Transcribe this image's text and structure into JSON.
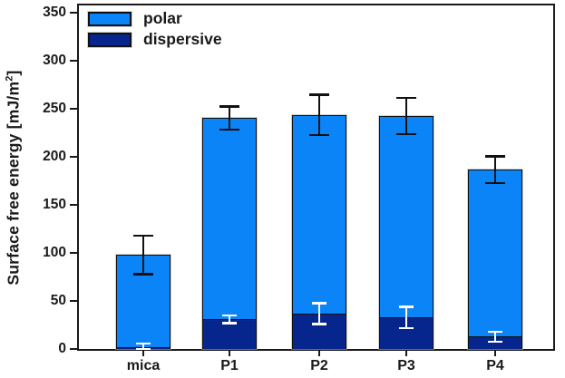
{
  "figure": {
    "background": "#ffffff",
    "axis_color": "#1a1a1a"
  },
  "y_axis": {
    "title_pre": "Surface free energy [mJ/m",
    "title_sup": "2",
    "title_post": "]"
  },
  "legend": {
    "items": [
      {
        "label": "polar",
        "color": "#0b84f8"
      },
      {
        "label": "dispersive",
        "color": "#07268d"
      }
    ]
  },
  "chart_data": {
    "type": "bar",
    "stacked": true,
    "title": "",
    "xlabel": "",
    "ylabel": "Surface free energy [mJ/m^2]",
    "ylim": [
      0,
      358
    ],
    "yticks": [
      0,
      50,
      100,
      150,
      200,
      250,
      300,
      350
    ],
    "grid": false,
    "legend_position": "top-left",
    "categories": [
      "mica",
      "P1",
      "P2",
      "P3",
      "P4"
    ],
    "series": [
      {
        "name": "polar",
        "color": "#0b84f8",
        "values": [
          96,
          210,
          207,
          210,
          174
        ]
      },
      {
        "name": "dispersive",
        "color": "#07268d",
        "values": [
          2,
          31,
          37,
          33,
          13
        ],
        "error": [
          4,
          4,
          11,
          11,
          5
        ],
        "error_bar_color": "#ffffff"
      }
    ],
    "totals": [
      98,
      241,
      244,
      243,
      187
    ],
    "total_error": [
      20,
      12,
      21,
      19,
      14
    ],
    "total_error_color": "#111111"
  }
}
